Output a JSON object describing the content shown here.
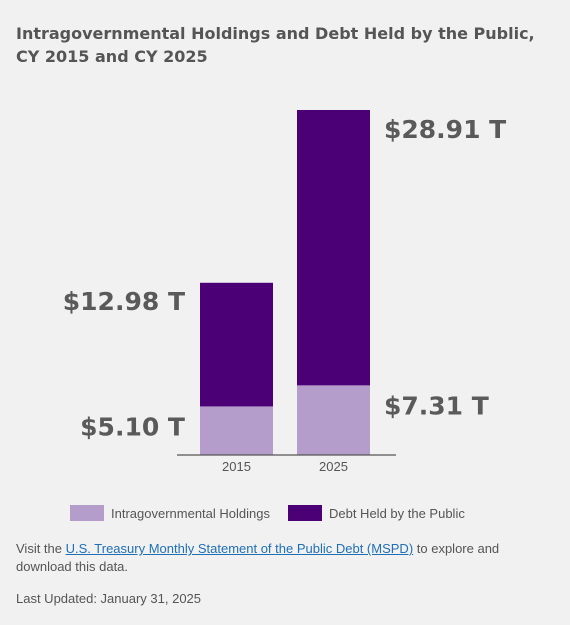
{
  "colors": {
    "intragovernmental": "#b59dcb",
    "public": "#4b0076",
    "axis": "#555555",
    "link": "#1f6fb5"
  },
  "chart_data": {
    "type": "bar",
    "stacked": true,
    "title": "Intragovernmental Holdings and Debt Held by the Public, CY 2015 and CY 2025",
    "categories": [
      "2015",
      "2025"
    ],
    "series": [
      {
        "name": "Intragovernmental Holdings",
        "values": [
          5.1,
          7.31
        ]
      },
      {
        "name": "Debt Held by the Public",
        "values": [
          12.98,
          28.91
        ]
      }
    ],
    "segment_labels": [
      [
        "$5.10 T",
        "$12.98 T"
      ],
      [
        "$7.31 T",
        "$28.91 T"
      ]
    ],
    "ylim": [
      0,
      36.22
    ],
    "grid": false,
    "legend_position": "bottom"
  },
  "legend": {
    "items": [
      {
        "label": "Intragovernmental Holdings"
      },
      {
        "label": "Debt Held by the Public"
      }
    ]
  },
  "footer": {
    "prefix": "Visit the ",
    "link_text": "U.S. Treasury Monthly Statement of the Public Debt (MSPD)",
    "suffix": " to explore and download this data.",
    "last_updated": "Last Updated: January 31, 2025"
  }
}
